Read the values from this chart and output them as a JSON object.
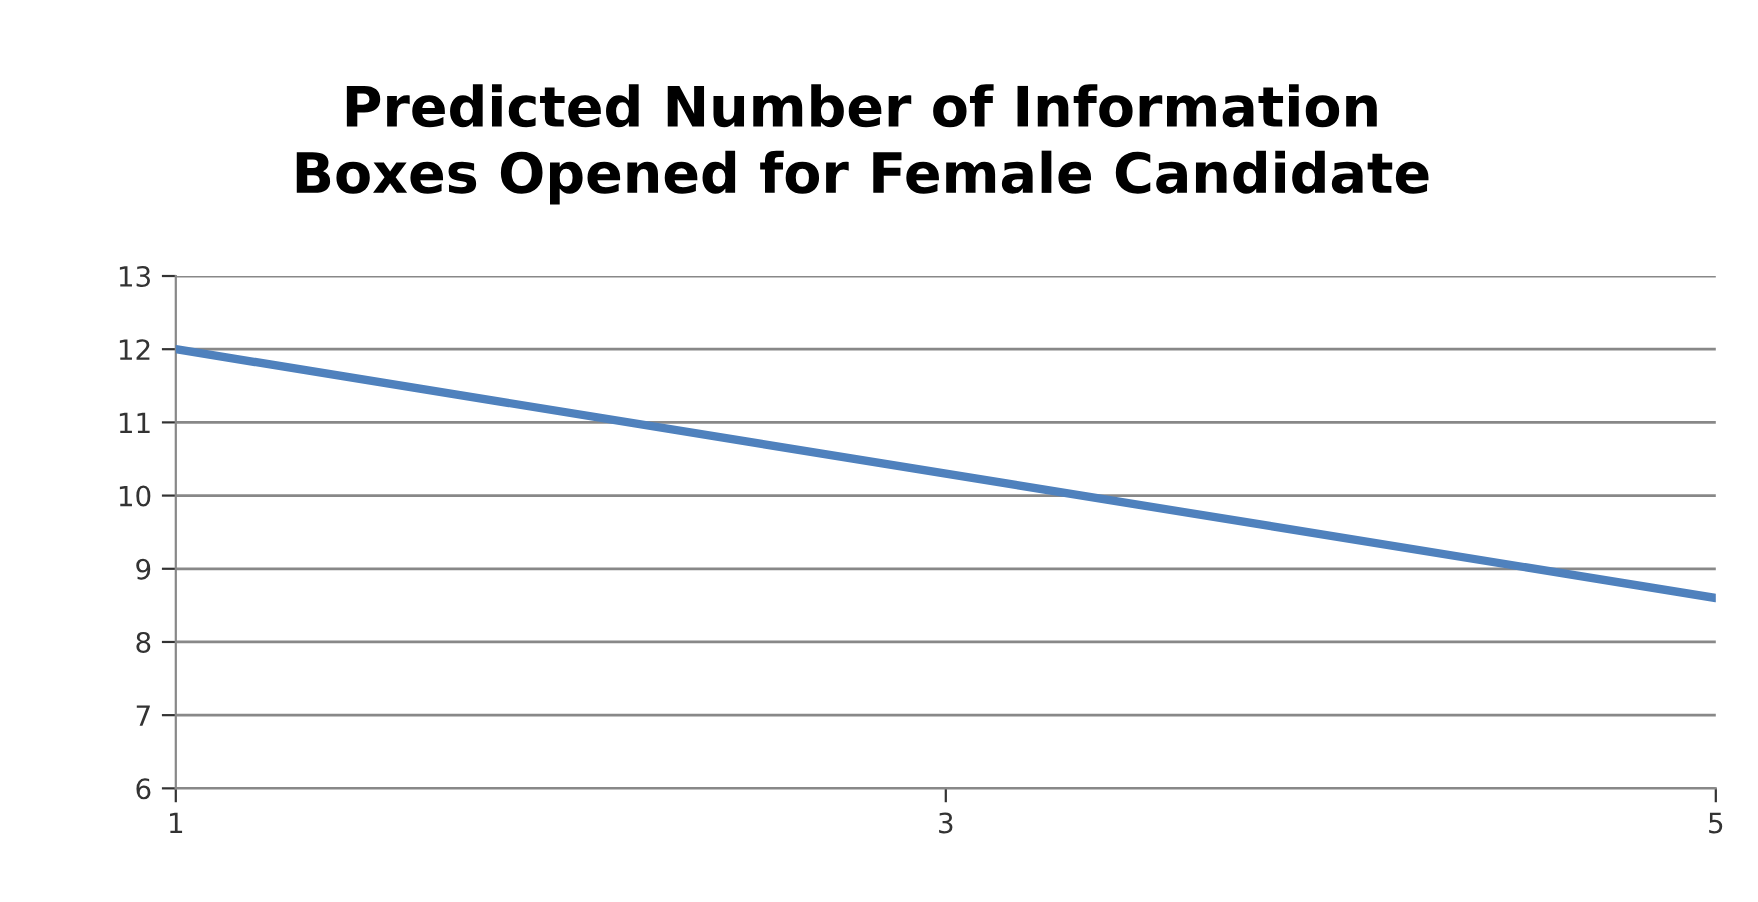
{
  "chart_data": {
    "type": "line",
    "title": "Predicted Number of Information\nBoxes Opened for Female Candidate",
    "x": [
      1,
      5
    ],
    "series": [
      {
        "color": "#4f81bd",
        "values": [
          12,
          8.6
        ]
      }
    ],
    "xlim": [
      1,
      5
    ],
    "xticks": [
      1,
      3,
      5
    ],
    "ylim": [
      6,
      13
    ],
    "yticks": [
      6,
      7,
      8,
      9,
      10,
      11,
      12,
      13
    ],
    "grid": "y",
    "marker": "none",
    "line_style": "solid"
  }
}
